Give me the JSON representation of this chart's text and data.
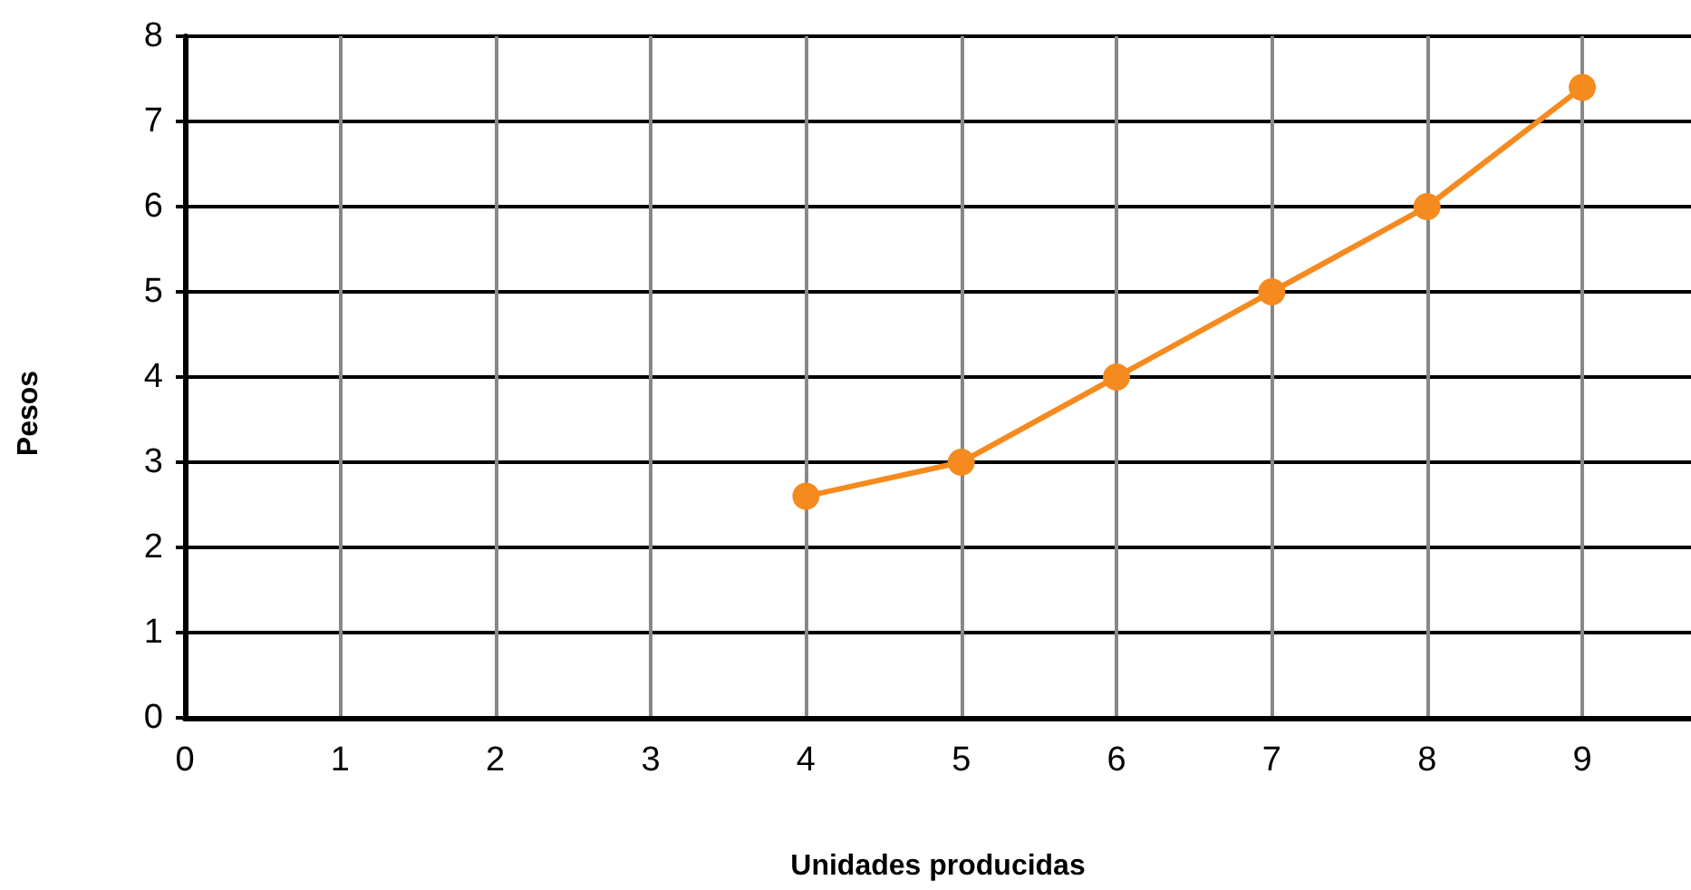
{
  "chart_data": {
    "type": "line",
    "xlabel": "Unidades producidas",
    "ylabel": "Pesos",
    "x": [
      4,
      5,
      6,
      7,
      8,
      9
    ],
    "series": [
      {
        "color": "#f58a1f",
        "values": [
          2.6,
          3,
          4,
          5,
          6,
          7.4
        ]
      }
    ],
    "xlim": [
      0,
      9.7
    ],
    "xticks": [
      0,
      1,
      2,
      3,
      4,
      5,
      6,
      7,
      8,
      9
    ],
    "ylim": [
      0,
      8
    ],
    "yticks": [
      0,
      1,
      2,
      3,
      4,
      5,
      6,
      7,
      8
    ],
    "grid": true,
    "marker": "circle",
    "line_style": "solid"
  }
}
